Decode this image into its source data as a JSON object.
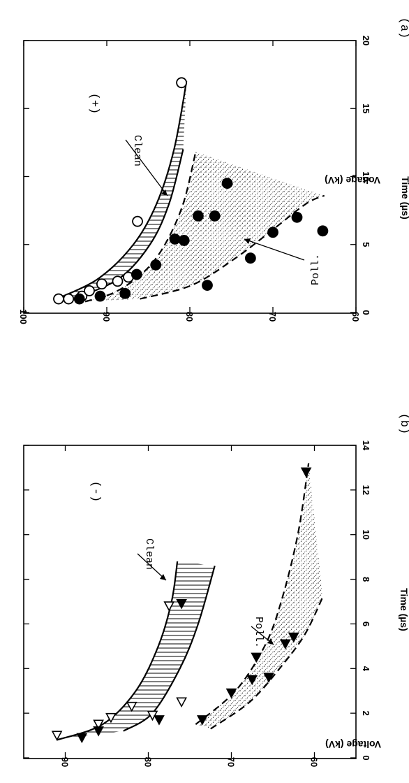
{
  "chart_data": [
    {
      "panel_label": "(a)",
      "polarity": "(+)",
      "type": "scatter",
      "xlabel": "Time (µs)",
      "ylabel": "Voltage (kV)",
      "xlim": [
        0,
        20
      ],
      "ylim": [
        60,
        100
      ],
      "xticks": [
        "0",
        "5",
        "10",
        "15",
        "20"
      ],
      "yticks": [
        "60",
        "70",
        "80",
        "90",
        "100"
      ],
      "annotations": [
        "Clean",
        "Poll."
      ],
      "series": [
        {
          "name": "Clean",
          "marker": "open-circle",
          "points": [
            [
              1.0,
              95.8
            ],
            [
              1.0,
              94.6
            ],
            [
              1.2,
              93.0
            ],
            [
              1.6,
              92.1
            ],
            [
              2.1,
              90.6
            ],
            [
              2.3,
              88.7
            ],
            [
              2.6,
              87.4
            ],
            [
              6.7,
              86.3
            ],
            [
              16.9,
              81.0
            ]
          ]
        },
        {
          "name": "Poll.",
          "marker": "filled-circle",
          "points": [
            [
              1.0,
              93.3
            ],
            [
              1.2,
              90.8
            ],
            [
              1.4,
              87.8
            ],
            [
              2.8,
              86.4
            ],
            [
              3.5,
              84.1
            ],
            [
              5.4,
              81.8
            ],
            [
              5.3,
              80.7
            ],
            [
              7.1,
              79.0
            ],
            [
              7.1,
              77.0
            ],
            [
              9.5,
              75.5
            ],
            [
              2.0,
              77.9
            ],
            [
              4.0,
              72.7
            ],
            [
              5.9,
              70.0
            ],
            [
              7.0,
              67.1
            ],
            [
              6.0,
              64.0
            ]
          ]
        }
      ],
      "curves": {
        "clean_upper": [
          [
            1.0,
            96.0
          ],
          [
            2.5,
            91.0
          ],
          [
            5.0,
            86.8
          ],
          [
            8.0,
            84.0
          ],
          [
            12.0,
            81.9
          ],
          [
            17.0,
            80.4
          ]
        ],
        "clean_lower": [
          [
            1.0,
            94.0
          ],
          [
            2.5,
            88.5
          ],
          [
            5.0,
            84.8
          ],
          [
            8.0,
            82.5
          ],
          [
            12.0,
            80.8
          ]
        ],
        "poll_upper": [
          [
            0.8,
            92.6
          ],
          [
            1.5,
            89.0
          ],
          [
            3.0,
            85.5
          ],
          [
            5.0,
            83.0
          ],
          [
            8.0,
            80.8
          ],
          [
            11.8,
            79.3
          ]
        ],
        "poll_lower": [
          [
            1.0,
            86.0
          ],
          [
            2.0,
            79.8
          ],
          [
            4.0,
            74.5
          ],
          [
            6.0,
            70.2
          ],
          [
            8.0,
            66.0
          ],
          [
            8.6,
            63.8
          ]
        ]
      }
    },
    {
      "panel_label": "(b)",
      "polarity": "(-)",
      "type": "scatter",
      "xlabel": "Time (µs)",
      "ylabel": "Voltage (kV)",
      "xlim": [
        0,
        14
      ],
      "ylim": [
        55,
        95
      ],
      "xticks": [
        "0",
        "2",
        "4",
        "6",
        "8",
        "10",
        "12",
        "14"
      ],
      "yticks": [
        "60",
        "70",
        "80",
        "90"
      ],
      "annotations": [
        "Clean",
        "Poll."
      ],
      "series": [
        {
          "name": "Clean",
          "marker": "open-triangle",
          "points": [
            [
              1.0,
              91.0
            ],
            [
              1.5,
              86.0
            ],
            [
              1.8,
              84.5
            ],
            [
              2.3,
              82.0
            ],
            [
              1.9,
              79.5
            ],
            [
              2.5,
              76.0
            ],
            [
              6.8,
              77.5
            ]
          ]
        },
        {
          "name": "Clean",
          "marker": "filled-triangle",
          "points": [
            [
              0.9,
              88.0
            ],
            [
              1.2,
              86.0
            ],
            [
              1.7,
              78.7
            ],
            [
              6.9,
              76.0
            ]
          ]
        },
        {
          "name": "Poll.",
          "marker": "filled-triangle",
          "points": [
            [
              1.7,
              73.5
            ],
            [
              2.9,
              70.0
            ],
            [
              3.5,
              67.5
            ],
            [
              3.6,
              65.5
            ],
            [
              4.5,
              67.0
            ],
            [
              5.1,
              63.5
            ],
            [
              5.4,
              62.5
            ],
            [
              12.8,
              61.0
            ]
          ]
        }
      ],
      "curves": {
        "clean_upper": [
          [
            0.8,
            91.0
          ],
          [
            1.5,
            85.5
          ],
          [
            3.0,
            81.5
          ],
          [
            5.0,
            78.8
          ],
          [
            7.0,
            77.2
          ],
          [
            8.8,
            76.5
          ]
        ],
        "clean_lower": [
          [
            1.2,
            83.0
          ],
          [
            2.0,
            79.5
          ],
          [
            4.0,
            76.2
          ],
          [
            6.0,
            74.0
          ],
          [
            8.6,
            72.0
          ]
        ],
        "poll_upper": [
          [
            1.5,
            74.3
          ],
          [
            3.0,
            69.5
          ],
          [
            5.0,
            66.0
          ],
          [
            7.0,
            64.0
          ],
          [
            10.0,
            62.0
          ],
          [
            13.2,
            60.7
          ]
        ],
        "poll_lower": [
          [
            1.3,
            72.5
          ],
          [
            2.5,
            67.8
          ],
          [
            4.0,
            64.2
          ],
          [
            5.5,
            61.2
          ],
          [
            7.2,
            59.0
          ]
        ]
      }
    }
  ]
}
